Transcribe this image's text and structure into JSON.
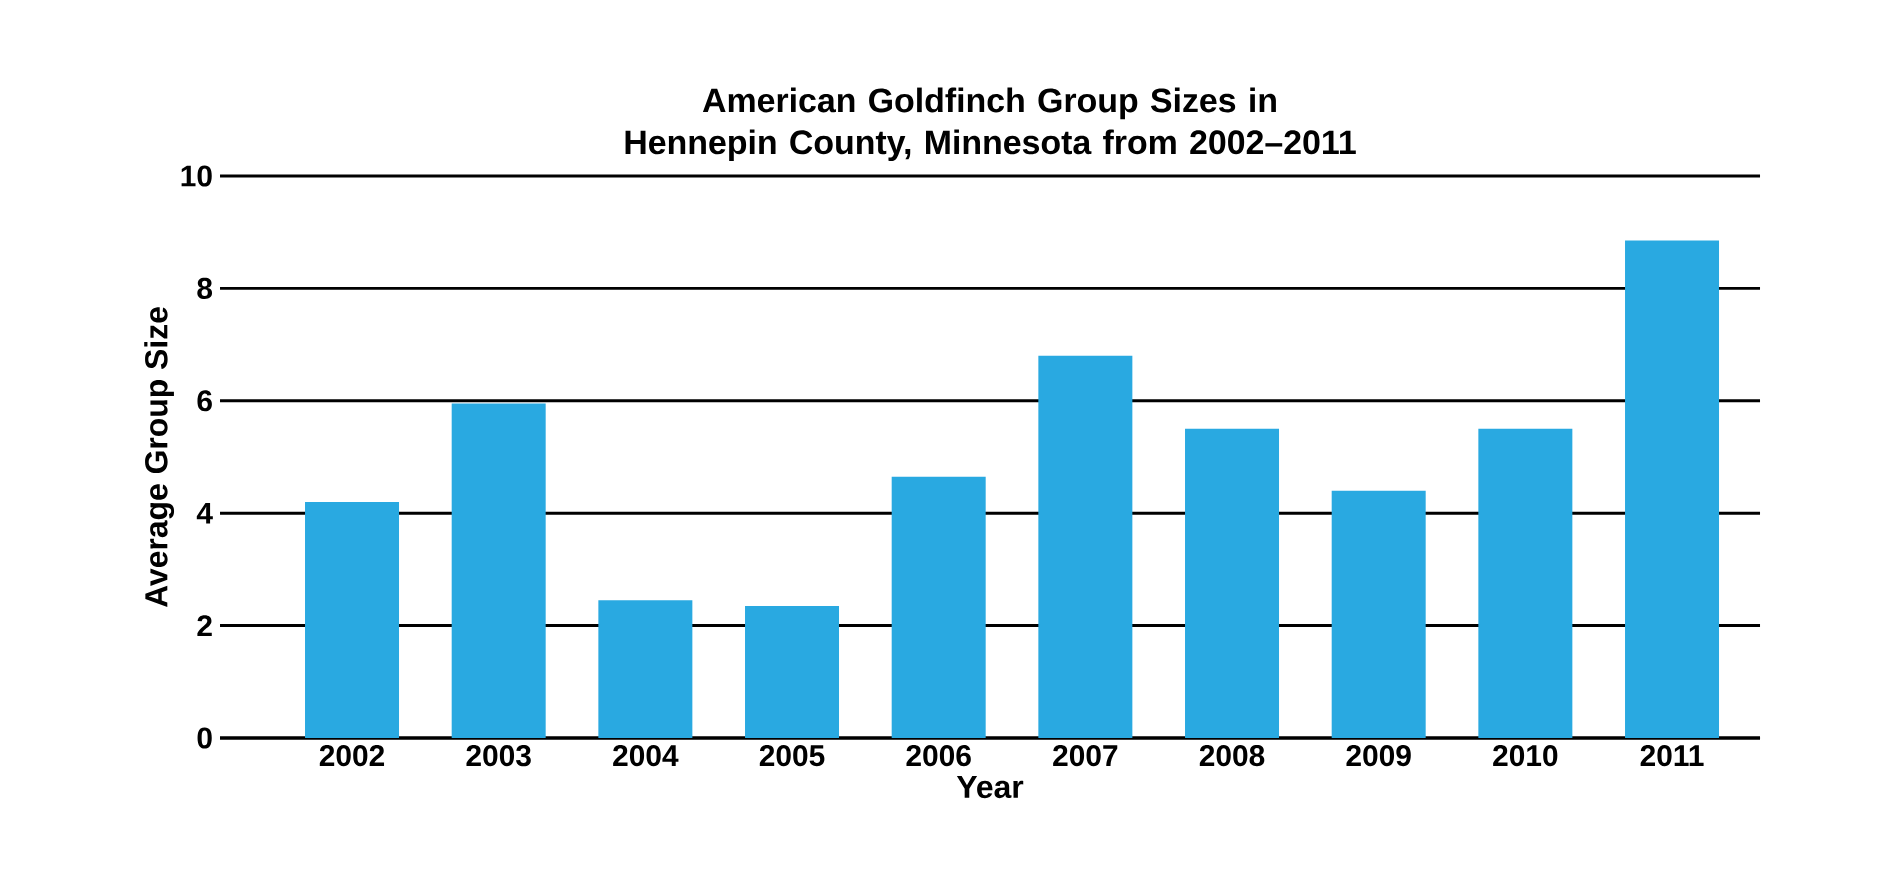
{
  "chart_data": {
    "type": "bar",
    "title": "American Goldfinch Group Sizes in\nHennepin County, Minnesota from 2002–2011",
    "xlabel": "Year",
    "ylabel": "Average Group Size",
    "categories": [
      "2002",
      "2003",
      "2004",
      "2005",
      "2006",
      "2007",
      "2008",
      "2009",
      "2010",
      "2011"
    ],
    "values": [
      4.2,
      5.95,
      2.45,
      2.35,
      4.65,
      6.8,
      5.5,
      4.4,
      5.5,
      8.85
    ],
    "color": "#29a9e1",
    "ylim": [
      0,
      10
    ],
    "yticks": [
      0,
      2,
      4,
      6,
      8,
      10
    ],
    "grid": "y"
  }
}
